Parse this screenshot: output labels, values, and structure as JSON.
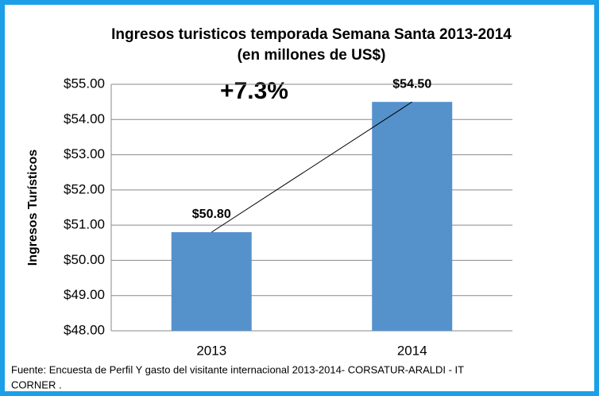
{
  "chart_data": {
    "type": "bar",
    "title": "Ingresos turisticos temporada Semana Santa 2013-2014",
    "subtitle": "(en millones de US$)",
    "ylabel": "Ingresos Turísticos",
    "annotation": "+7.3%",
    "source": [
      "Fuente: Encuesta de  Perfil Y gasto del visitante internacional  2013-2014- CORSATUR-ARALDI - IT",
      "CORNER ."
    ],
    "categories": [
      "2013",
      "2014"
    ],
    "values": [
      50.8,
      54.5
    ],
    "value_labels": [
      "$50.80",
      "$54.50"
    ],
    "color": "#5592cc",
    "ylim": [
      48,
      55
    ],
    "yticks": [
      {
        "value": 48,
        "label": "$48.00"
      },
      {
        "value": 49,
        "label": "$49.00"
      },
      {
        "value": 50,
        "label": "$50.00"
      },
      {
        "value": 51,
        "label": "$51.00"
      },
      {
        "value": 52,
        "label": "$52.00"
      },
      {
        "value": 53,
        "label": "$53.00"
      },
      {
        "value": 54,
        "label": "$54.00"
      },
      {
        "value": 55,
        "label": "$55.00"
      }
    ],
    "grid": true
  }
}
